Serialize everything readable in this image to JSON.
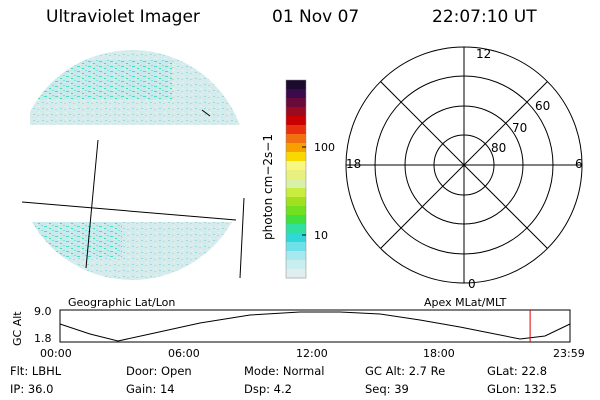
{
  "header": {
    "instrument": "Ultraviolet Imager",
    "date": "01 Nov 07",
    "time": "22:07:10 UT"
  },
  "colorbar": {
    "unit_label": "photon cm−2s−1",
    "ticks": [
      "100",
      "10"
    ],
    "colors": [
      "#1a0a2e",
      "#3b0a4a",
      "#6a0a3a",
      "#9a0a20",
      "#c80000",
      "#e83010",
      "#f07010",
      "#f8a000",
      "#f8d800",
      "#f8f880",
      "#e8f080",
      "#d8f0a8",
      "#c8ec40",
      "#a0e020",
      "#70e020",
      "#40e040",
      "#30e0a0",
      "#30d8d8",
      "#70e0e8",
      "#a8e8f0",
      "#c8eef0",
      "#e0eef0"
    ]
  },
  "polar": {
    "mlt_labels": {
      "top": "12",
      "left": "18",
      "right": "6",
      "bottom": "0"
    },
    "mlat_labels": [
      "60",
      "70",
      "80"
    ]
  },
  "timeline": {
    "ylabel": "GC Alt",
    "ymax": "9.0",
    "ymin": "1.8",
    "left_title": "Geographic Lat/Lon",
    "right_title": "Apex MLat/MLT",
    "xticks": [
      "00:00",
      "06:00",
      "12:00",
      "18:00",
      "23:59"
    ],
    "current_time_hours": 22.12
  },
  "info": {
    "flt": "Flt: LBHL",
    "door": "Door: Open",
    "mode": "Mode: Normal",
    "gcalt": "GC Alt: 2.7 Re",
    "glat": "GLat:  22.8",
    "ip": "IP: 36.0",
    "gain": "Gain: 14",
    "dsp": "Dsp:     4.2",
    "seq": "Seq: 39",
    "glon": "GLon: 132.5"
  }
}
